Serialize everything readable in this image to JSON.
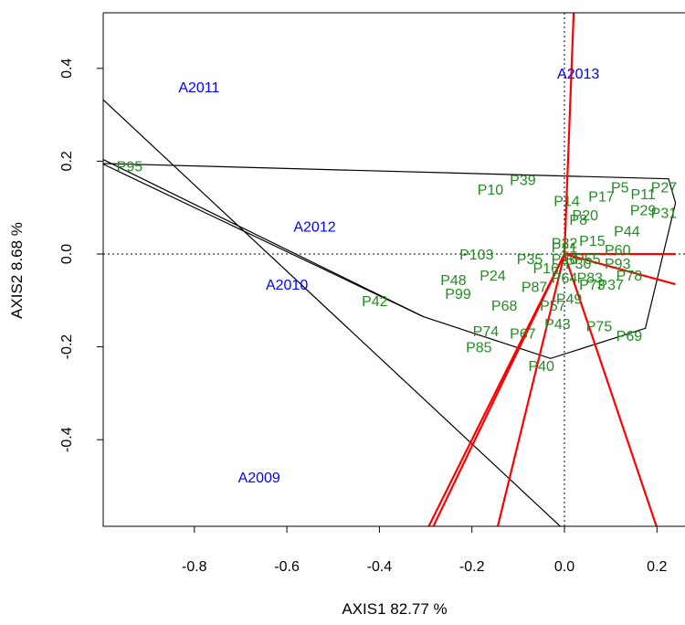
{
  "chart_data": {
    "type": "scatter",
    "title": "",
    "xlabel": "AXIS1 82.77 %",
    "ylabel": "AXIS2 8.68 %",
    "xlim": [
      -1.0,
      0.24
    ],
    "ylim": [
      -0.6,
      0.52
    ],
    "x_ticks": [
      -0.8,
      -0.6,
      -0.4,
      -0.2,
      0.0,
      0.2
    ],
    "x_tick_labels": [
      "-0.8",
      "-0.6",
      "-0.4",
      "-0.2",
      "0.0",
      "0.2"
    ],
    "y_ticks": [
      -0.4,
      -0.2,
      0.0,
      0.2,
      0.4
    ],
    "y_tick_labels": [
      "-0.4",
      "-0.2",
      "0.0",
      "0.2",
      "0.4"
    ],
    "grid": false,
    "reference_lines": {
      "x": 0,
      "y": 0,
      "style": "dotted"
    },
    "environments": {
      "color": "#0000ff",
      "points": [
        {
          "label": "A2011",
          "x": -0.79,
          "y": 0.36
        },
        {
          "label": "A2013",
          "x": 0.03,
          "y": 0.39
        },
        {
          "label": "A2012",
          "x": -0.54,
          "y": 0.06
        },
        {
          "label": "A2010",
          "x": -0.6,
          "y": -0.065
        },
        {
          "label": "A2009",
          "x": -0.66,
          "y": -0.48
        }
      ]
    },
    "genotypes": {
      "color": "#228b22",
      "points": [
        {
          "label": "P95",
          "x": -0.94,
          "y": 0.19
        },
        {
          "label": "P39",
          "x": -0.09,
          "y": 0.16
        },
        {
          "label": "P10",
          "x": -0.16,
          "y": 0.14
        },
        {
          "label": "P5",
          "x": 0.12,
          "y": 0.145
        },
        {
          "label": "P27",
          "x": 0.215,
          "y": 0.145
        },
        {
          "label": "P11",
          "x": 0.17,
          "y": 0.13
        },
        {
          "label": "P17",
          "x": 0.08,
          "y": 0.125
        },
        {
          "label": "P14",
          "x": 0.005,
          "y": 0.115
        },
        {
          "label": "P31",
          "x": 0.215,
          "y": 0.09
        },
        {
          "label": "P29",
          "x": 0.17,
          "y": 0.095
        },
        {
          "label": "P20",
          "x": 0.045,
          "y": 0.085
        },
        {
          "label": "P8",
          "x": 0.03,
          "y": 0.075
        },
        {
          "label": "P44",
          "x": 0.135,
          "y": 0.05
        },
        {
          "label": "P15",
          "x": 0.06,
          "y": 0.03
        },
        {
          "label": "P22",
          "x": 0.0,
          "y": 0.025
        },
        {
          "label": "P21",
          "x": 0.0,
          "y": 0.015
        },
        {
          "label": "P60",
          "x": 0.115,
          "y": 0.01
        },
        {
          "label": "P103",
          "x": -0.19,
          "y": 0.0
        },
        {
          "label": "P35",
          "x": -0.075,
          "y": -0.01
        },
        {
          "label": "P26",
          "x": 0.0,
          "y": -0.01
        },
        {
          "label": "P55",
          "x": 0.05,
          "y": -0.01
        },
        {
          "label": "P30",
          "x": 0.03,
          "y": -0.02
        },
        {
          "label": "P93",
          "x": 0.115,
          "y": -0.02
        },
        {
          "label": "P16",
          "x": -0.04,
          "y": -0.03
        },
        {
          "label": "P24",
          "x": -0.155,
          "y": -0.045
        },
        {
          "label": "P78",
          "x": 0.14,
          "y": -0.045
        },
        {
          "label": "P64",
          "x": 0.0,
          "y": -0.05
        },
        {
          "label": "P83",
          "x": 0.055,
          "y": -0.05
        },
        {
          "label": "P48",
          "x": -0.24,
          "y": -0.055
        },
        {
          "label": "P87",
          "x": -0.065,
          "y": -0.07
        },
        {
          "label": "P73",
          "x": 0.06,
          "y": -0.065
        },
        {
          "label": "P37",
          "x": 0.1,
          "y": -0.065
        },
        {
          "label": "P99",
          "x": -0.23,
          "y": -0.085
        },
        {
          "label": "P42",
          "x": -0.41,
          "y": -0.1
        },
        {
          "label": "P49",
          "x": 0.01,
          "y": -0.095
        },
        {
          "label": "P68",
          "x": -0.13,
          "y": -0.11
        },
        {
          "label": "P57",
          "x": -0.025,
          "y": -0.11
        },
        {
          "label": "P43",
          "x": -0.015,
          "y": -0.15
        },
        {
          "label": "P75",
          "x": 0.075,
          "y": -0.155
        },
        {
          "label": "P69",
          "x": 0.14,
          "y": -0.175
        },
        {
          "label": "P74",
          "x": -0.17,
          "y": -0.165
        },
        {
          "label": "P67",
          "x": -0.09,
          "y": -0.17
        },
        {
          "label": "P85",
          "x": -0.185,
          "y": -0.2
        },
        {
          "label": "P40",
          "x": -0.05,
          "y": -0.24
        }
      ]
    },
    "hull": {
      "color": "#000000",
      "vertices": [
        {
          "x": -1.0,
          "y": 0.195
        },
        {
          "x": 0.225,
          "y": 0.162
        },
        {
          "x": 0.24,
          "y": 0.11
        },
        {
          "x": 0.175,
          "y": -0.16
        },
        {
          "x": -0.03,
          "y": -0.225
        },
        {
          "x": -0.305,
          "y": -0.135
        },
        {
          "x": -1.0,
          "y": 0.195
        }
      ]
    },
    "perpendicular_lines": {
      "color": "#000000",
      "segments": [
        [
          {
            "x": -1.0,
            "y": 0.335
          },
          {
            "x": 0.0,
            "y": -0.595
          }
        ],
        [
          {
            "x": -1.0,
            "y": 0.205
          },
          {
            "x": -0.305,
            "y": -0.135
          }
        ]
      ]
    },
    "environment_vectors": {
      "color": "#ff0000",
      "origin": {
        "x": 0,
        "y": 0
      },
      "ends": [
        {
          "x": 0.02,
          "y": 0.52
        },
        {
          "x": 0.24,
          "y": 0.0
        },
        {
          "x": 0.24,
          "y": -0.065
        },
        {
          "x": 0.2,
          "y": -0.59
        },
        {
          "x": -0.145,
          "y": -0.59
        },
        {
          "x": -0.295,
          "y": -0.59
        },
        {
          "x": -0.285,
          "y": -0.59
        }
      ]
    }
  }
}
